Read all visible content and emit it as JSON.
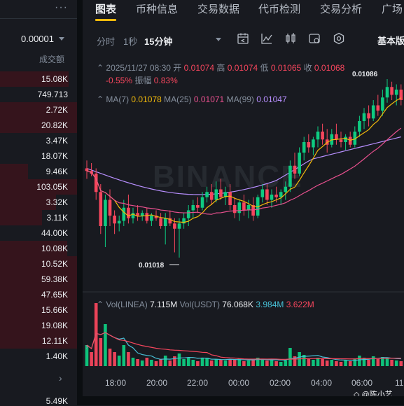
{
  "header": {
    "tabs": [
      {
        "label": "图表"
      },
      {
        "label": "币种信息"
      },
      {
        "label": "交易数据"
      },
      {
        "label": "代币检测"
      },
      {
        "label": "交易分析"
      },
      {
        "label": "广场"
      }
    ],
    "active_tab": "图表"
  },
  "left_panel": {
    "more_label": "···",
    "tick_value": "0.00001",
    "column_header": "成交额",
    "rows": [
      "15.08K",
      "749.713",
      "2.72K",
      "20.82K",
      "3.47K",
      "18.07K",
      "9.46K",
      "103.05K",
      "3.32K",
      "3.11K",
      "44.00K",
      "10.08K",
      "10.52K",
      "59.38K",
      "47.65K",
      "15.66K",
      "19.08K",
      "12.11K",
      "1.40K"
    ],
    "bottom_value": "5.49K",
    "chevron": "›"
  },
  "toolbar": {
    "intervals": [
      "分时",
      "1秒",
      "15分钟"
    ],
    "selected_interval": "15分钟",
    "icons": [
      "calendar-icon",
      "indicator-icon",
      "candle-type-icon",
      "settings-icon",
      "target-icon"
    ],
    "mode_label": "基本版"
  },
  "candle_info": {
    "datetime": "2025/11/27 08:30",
    "open_label": "开",
    "open": "0.01074",
    "high_label": "高",
    "high": "0.01074",
    "low_label": "低",
    "low": "0.01065",
    "close_label": "收",
    "close": "0.01068",
    "change": "-0.55%",
    "amplitude_label": "振幅",
    "amplitude": "0.83%"
  },
  "ma_legend": {
    "ma7_label": "MA(7)",
    "ma7": "0.01078",
    "ma25_label": "MA(25)",
    "ma25": "0.01071",
    "ma99_label": "MA(99)",
    "ma99": "0.01047"
  },
  "volume_legend": {
    "label1": "Vol(LINEA)",
    "value1": "7.115M",
    "label2": "Vol(USDT)",
    "value2": "76.068K",
    "value3": "3.984M",
    "value4": "3.622M"
  },
  "chart_data": {
    "type": "candlestick",
    "symbol": "LINEA",
    "interval": "15分钟",
    "low_marker": "0.01018",
    "high_marker": "0.01086",
    "x_ticks": [
      "18:00",
      "20:00",
      "22:00",
      "00:00",
      "02:00",
      "04:00",
      "06:00",
      "11"
    ],
    "colors": {
      "up": "#0ecb81",
      "down": "#f6465d",
      "ma7": "#f0b90b",
      "ma25": "#e8508e",
      "ma99": "#b88fff",
      "vol_ma1": "#47c0d6",
      "vol_ma2": "#f6465d"
    },
    "candles": [
      [
        1,
        0.01052,
        0.01055,
        0.01048,
        0.01051
      ],
      [
        2,
        0.01051,
        0.01054,
        0.01049,
        0.0105
      ],
      [
        3,
        0.0105,
        0.01052,
        0.0104,
        0.01043
      ],
      [
        4,
        0.01043,
        0.01046,
        0.01027,
        0.0103
      ],
      [
        5,
        0.0103,
        0.01042,
        0.01022,
        0.0104
      ],
      [
        6,
        0.0104,
        0.01044,
        0.0103,
        0.01034
      ],
      [
        7,
        0.01034,
        0.01036,
        0.01027,
        0.01031
      ],
      [
        8,
        0.01031,
        0.01034,
        0.01028,
        0.01032
      ],
      [
        9,
        0.01032,
        0.0104,
        0.0103,
        0.01037
      ],
      [
        10,
        0.01037,
        0.01042,
        0.01031,
        0.01033
      ],
      [
        11,
        0.01033,
        0.01037,
        0.01031,
        0.01035
      ],
      [
        12,
        0.01035,
        0.01038,
        0.01032,
        0.01034
      ],
      [
        13,
        0.01034,
        0.01036,
        0.01032,
        0.01035
      ],
      [
        14,
        0.01035,
        0.01037,
        0.01031,
        0.01032
      ],
      [
        15,
        0.01032,
        0.01035,
        0.0103,
        0.01034
      ],
      [
        16,
        0.01034,
        0.01036,
        0.01032,
        0.01033
      ],
      [
        17,
        0.01033,
        0.01035,
        0.01029,
        0.0103
      ],
      [
        18,
        0.0103,
        0.01035,
        0.01023,
        0.01033
      ],
      [
        19,
        0.01033,
        0.01036,
        0.0103,
        0.01031
      ],
      [
        20,
        0.01031,
        0.01033,
        0.0102,
        0.01029
      ],
      [
        21,
        0.01029,
        0.01033,
        0.01018,
        0.01031
      ],
      [
        22,
        0.01031,
        0.01035,
        0.01029,
        0.01033
      ],
      [
        23,
        0.01033,
        0.01038,
        0.0103,
        0.01036
      ],
      [
        24,
        0.01036,
        0.0104,
        0.01033,
        0.01038
      ],
      [
        25,
        0.01038,
        0.01041,
        0.01035,
        0.01037
      ],
      [
        26,
        0.01037,
        0.01043,
        0.01036,
        0.01041
      ],
      [
        27,
        0.01041,
        0.01045,
        0.01039,
        0.01043
      ],
      [
        28,
        0.01043,
        0.01046,
        0.01038,
        0.0104
      ],
      [
        29,
        0.0104,
        0.01047,
        0.01039,
        0.01044
      ],
      [
        30,
        0.01044,
        0.01048,
        0.0104,
        0.01041
      ],
      [
        31,
        0.01041,
        0.01045,
        0.01038,
        0.01043
      ],
      [
        32,
        0.01043,
        0.01046,
        0.01036,
        0.01038
      ],
      [
        33,
        0.01038,
        0.01041,
        0.01033,
        0.01035
      ],
      [
        34,
        0.01035,
        0.0104,
        0.01032,
        0.01039
      ],
      [
        35,
        0.01039,
        0.01042,
        0.01034,
        0.01036
      ],
      [
        36,
        0.01036,
        0.0104,
        0.01033,
        0.01038
      ],
      [
        37,
        0.01038,
        0.01041,
        0.01032,
        0.01034
      ],
      [
        38,
        0.01034,
        0.01042,
        0.01033,
        0.01041
      ],
      [
        39,
        0.01041,
        0.01046,
        0.01039,
        0.01044
      ],
      [
        40,
        0.01044,
        0.01046,
        0.01038,
        0.0104
      ],
      [
        41,
        0.0104,
        0.01044,
        0.01037,
        0.01042
      ],
      [
        42,
        0.01042,
        0.01045,
        0.01039,
        0.01041
      ],
      [
        43,
        0.01041,
        0.01044,
        0.01038,
        0.01043
      ],
      [
        44,
        0.01043,
        0.01047,
        0.0104,
        0.01045
      ],
      [
        45,
        0.01045,
        0.01055,
        0.01043,
        0.01053
      ],
      [
        46,
        0.01053,
        0.01058,
        0.01048,
        0.0105
      ],
      [
        47,
        0.0105,
        0.0106,
        0.01049,
        0.01058
      ],
      [
        48,
        0.01058,
        0.01064,
        0.01055,
        0.01062
      ],
      [
        49,
        0.01062,
        0.01065,
        0.01058,
        0.0106
      ],
      [
        50,
        0.0106,
        0.01064,
        0.01057,
        0.01063
      ],
      [
        51,
        0.01063,
        0.01068,
        0.0106,
        0.01066
      ],
      [
        52,
        0.01066,
        0.01069,
        0.01061,
        0.01063
      ],
      [
        53,
        0.01063,
        0.01067,
        0.01058,
        0.01061
      ],
      [
        54,
        0.01061,
        0.01067,
        0.0106,
        0.01065
      ],
      [
        55,
        0.01065,
        0.01069,
        0.01061,
        0.01063
      ],
      [
        56,
        0.01063,
        0.01066,
        0.0106,
        0.01062
      ],
      [
        57,
        0.01062,
        0.01065,
        0.01059,
        0.01064
      ],
      [
        58,
        0.01064,
        0.01066,
        0.0106,
        0.01061
      ],
      [
        59,
        0.01061,
        0.01068,
        0.0106,
        0.01066
      ],
      [
        60,
        0.01066,
        0.01072,
        0.01064,
        0.0107
      ],
      [
        61,
        0.0107,
        0.01075,
        0.01067,
        0.01073
      ],
      [
        62,
        0.01073,
        0.01076,
        0.01068,
        0.01071
      ],
      [
        63,
        0.01071,
        0.01078,
        0.0107,
        0.01076
      ],
      [
        64,
        0.01076,
        0.0108,
        0.01072,
        0.01074
      ],
      [
        65,
        0.01074,
        0.01082,
        0.01072,
        0.01079
      ],
      [
        66,
        0.01079,
        0.01086,
        0.01077,
        0.01083
      ],
      [
        67,
        0.01083,
        0.01085,
        0.01078,
        0.0108
      ],
      [
        68,
        0.0108,
        0.01084,
        0.01076,
        0.01082
      ],
      [
        69,
        0.01082,
        0.01084,
        0.01076,
        0.01078
      ]
    ],
    "volume": [
      [
        1,
        0.3,
        0
      ],
      [
        2,
        0.2,
        1
      ],
      [
        3,
        0.9,
        1
      ],
      [
        4,
        0.4,
        1
      ],
      [
        5,
        0.6,
        0
      ],
      [
        6,
        0.25,
        1
      ],
      [
        7,
        0.2,
        1
      ],
      [
        8,
        0.15,
        0
      ],
      [
        9,
        0.3,
        0
      ],
      [
        10,
        0.2,
        1
      ],
      [
        11,
        0.12,
        0
      ],
      [
        12,
        0.1,
        1
      ],
      [
        13,
        0.08,
        0
      ],
      [
        14,
        0.12,
        1
      ],
      [
        15,
        0.09,
        0
      ],
      [
        16,
        0.07,
        1
      ],
      [
        17,
        0.1,
        1
      ],
      [
        18,
        0.15,
        0
      ],
      [
        19,
        0.08,
        1
      ],
      [
        20,
        0.14,
        1
      ],
      [
        21,
        0.18,
        0
      ],
      [
        22,
        0.1,
        0
      ],
      [
        23,
        0.12,
        0
      ],
      [
        24,
        0.09,
        0
      ],
      [
        25,
        0.07,
        1
      ],
      [
        26,
        0.11,
        0
      ],
      [
        27,
        0.12,
        0
      ],
      [
        28,
        0.08,
        1
      ],
      [
        29,
        0.1,
        0
      ],
      [
        30,
        0.09,
        1
      ],
      [
        31,
        0.08,
        0
      ],
      [
        32,
        0.1,
        1
      ],
      [
        33,
        0.09,
        1
      ],
      [
        34,
        0.11,
        0
      ],
      [
        35,
        0.07,
        1
      ],
      [
        36,
        0.08,
        0
      ],
      [
        37,
        0.09,
        1
      ],
      [
        38,
        0.12,
        0
      ],
      [
        39,
        0.1,
        0
      ],
      [
        40,
        0.08,
        1
      ],
      [
        41,
        0.09,
        0
      ],
      [
        42,
        0.07,
        1
      ],
      [
        43,
        0.06,
        0
      ],
      [
        44,
        0.08,
        0
      ],
      [
        45,
        0.26,
        0
      ],
      [
        46,
        0.14,
        1
      ],
      [
        47,
        0.2,
        0
      ],
      [
        48,
        0.16,
        0
      ],
      [
        49,
        0.1,
        1
      ],
      [
        50,
        0.09,
        0
      ],
      [
        51,
        0.12,
        0
      ],
      [
        52,
        0.1,
        1
      ],
      [
        53,
        0.08,
        1
      ],
      [
        54,
        0.09,
        0
      ],
      [
        55,
        0.07,
        1
      ],
      [
        56,
        0.06,
        1
      ],
      [
        57,
        0.08,
        0
      ],
      [
        58,
        0.07,
        1
      ],
      [
        59,
        0.11,
        0
      ],
      [
        60,
        0.15,
        0
      ],
      [
        61,
        0.12,
        0
      ],
      [
        62,
        0.09,
        1
      ],
      [
        63,
        0.14,
        0
      ],
      [
        64,
        0.1,
        1
      ],
      [
        65,
        0.13,
        0
      ],
      [
        66,
        0.12,
        0
      ],
      [
        67,
        0.09,
        1
      ],
      [
        68,
        0.08,
        0
      ],
      [
        69,
        0.07,
        1
      ]
    ]
  },
  "watermark": "BINANCE",
  "author_badge": "@陈小艺"
}
